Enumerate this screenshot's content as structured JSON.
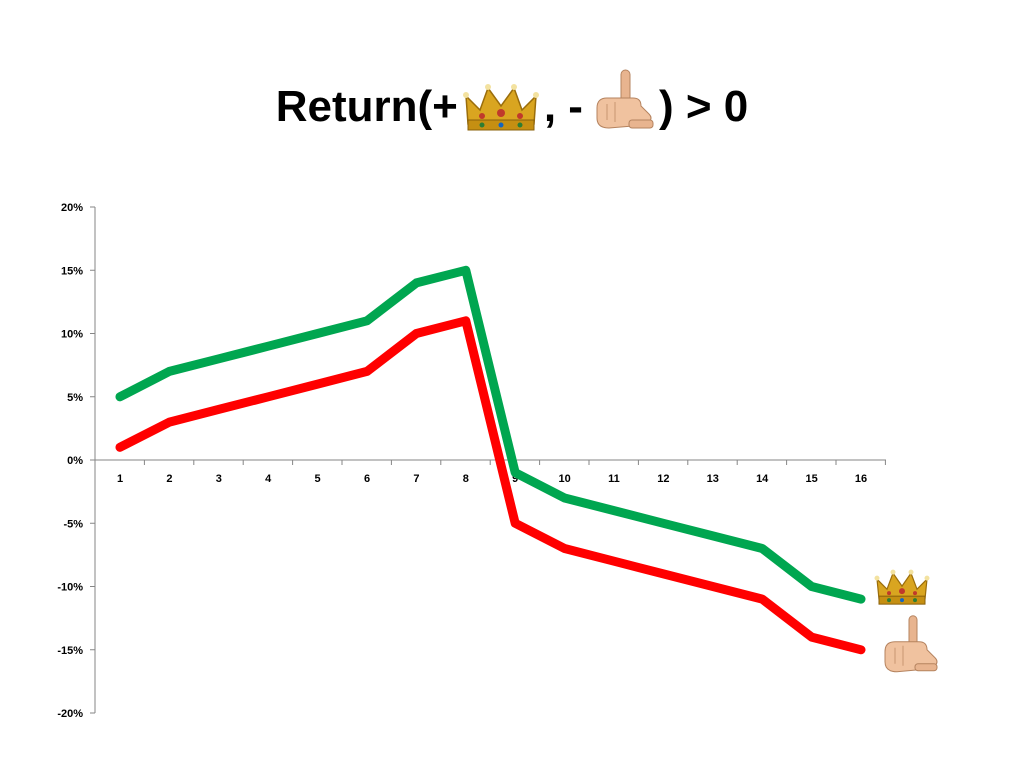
{
  "title": {
    "prefix": "Return(+",
    "separator": ", -",
    "suffix": ") > 0",
    "icons": [
      "crown-icon",
      "pointing-hand-icon"
    ]
  },
  "colors": {
    "series_green": "#00a650",
    "series_red": "#ff0000",
    "axis": "#868686"
  },
  "chart_data": {
    "type": "line",
    "x": [
      1,
      2,
      3,
      4,
      5,
      6,
      7,
      8,
      9,
      10,
      11,
      12,
      13,
      14,
      15,
      16
    ],
    "x_tick_labels": [
      "1",
      "2",
      "3",
      "4",
      "5",
      "6",
      "7",
      "8",
      "9",
      "10",
      "11",
      "12",
      "13",
      "14",
      "15",
      "16"
    ],
    "y_tick_labels": [
      "20%",
      "15%",
      "10%",
      "5%",
      "0%",
      "-5%",
      "-10%",
      "-15%",
      "-20%"
    ],
    "y_ticks": [
      20,
      15,
      10,
      5,
      0,
      -5,
      -10,
      -15,
      -20
    ],
    "ylim": [
      -20,
      20
    ],
    "y_unit": "%",
    "grid": false,
    "legend": "icons at end of each line (right)",
    "series": [
      {
        "color": "#00a650",
        "marker_icon": "crown-icon",
        "values": [
          5,
          7,
          8,
          9,
          10,
          11,
          14,
          15,
          -1,
          -3,
          -4,
          -5,
          -6,
          -7,
          -10,
          -11
        ]
      },
      {
        "color": "#ff0000",
        "marker_icon": "pointing-hand-icon",
        "values": [
          1,
          3,
          4,
          5,
          6,
          7,
          10,
          11,
          -5,
          -7,
          -8,
          -9,
          -10,
          -11,
          -14,
          -15
        ]
      }
    ]
  }
}
